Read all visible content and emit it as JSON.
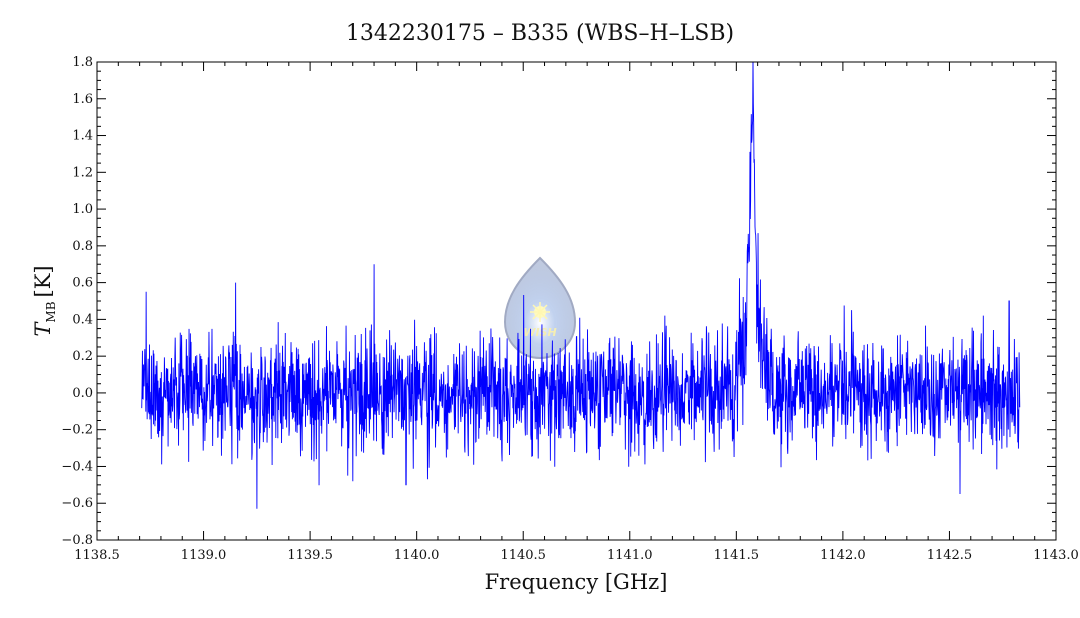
{
  "chart_data": {
    "type": "line",
    "title": "1342230175 – B335 (WBS–H–LSB)",
    "xlabel": "Frequency [GHz]",
    "ylabel_main": "T",
    "ylabel_sub": "MB",
    "ylabel_unit": "[K]",
    "xlim": [
      1138.5,
      1143.0
    ],
    "ylim": [
      -0.8,
      1.8
    ],
    "x_ticks": [
      1138.5,
      1139.0,
      1139.5,
      1140.0,
      1140.5,
      1141.0,
      1141.5,
      1142.0,
      1142.5,
      1143.0
    ],
    "x_tick_labels": [
      "1138.5",
      "1139.0",
      "1139.5",
      "1140.0",
      "1140.5",
      "1141.0",
      "1141.5",
      "1142.0",
      "1142.5",
      "1143.0"
    ],
    "y_ticks": [
      -0.8,
      -0.6,
      -0.4,
      -0.2,
      0.0,
      0.2,
      0.4,
      0.6,
      0.8,
      1.0,
      1.2,
      1.4,
      1.6,
      1.8
    ],
    "y_tick_labels": [
      "−0.8",
      "−0.6",
      "−0.4",
      "−0.2",
      "0.0",
      "0.2",
      "0.4",
      "0.6",
      "0.8",
      "1.0",
      "1.2",
      "1.4",
      "1.6",
      "1.8"
    ],
    "grid": false,
    "series": [
      {
        "color": "#0000ff",
        "x_range": [
          1138.71,
          1142.83
        ],
        "x": [
          1138.71,
          1138.8,
          1139.0,
          1139.25,
          1139.5,
          1139.8,
          1140.0,
          1140.3,
          1140.6,
          1140.9,
          1141.2,
          1141.4,
          1141.5,
          1141.54,
          1141.56,
          1141.57,
          1141.58,
          1141.59,
          1141.6,
          1141.62,
          1141.65,
          1141.7,
          1142.0,
          1142.3,
          1142.55,
          1142.83
        ],
        "y": [
          0.0,
          0.0,
          0.0,
          0.0,
          0.0,
          0.0,
          0.0,
          0.0,
          0.0,
          0.0,
          0.0,
          0.02,
          0.08,
          0.3,
          0.7,
          1.45,
          1.55,
          0.8,
          0.45,
          0.25,
          0.08,
          0.02,
          0.0,
          0.0,
          0.0,
          0.0
        ],
        "noise_rms": 0.15,
        "noise_extremes": [
          {
            "x": 1138.73,
            "y": 0.55
          },
          {
            "x": 1139.15,
            "y": 0.6
          },
          {
            "x": 1139.25,
            "y": -0.63
          },
          {
            "x": 1139.8,
            "y": 0.7
          },
          {
            "x": 1139.95,
            "y": -0.5
          },
          {
            "x": 1142.55,
            "y": -0.55
          },
          {
            "x": 1142.78,
            "y": 0.5
          }
        ]
      }
    ]
  },
  "watermark": {
    "text": "WISH",
    "icon": "drop-star-logo"
  }
}
